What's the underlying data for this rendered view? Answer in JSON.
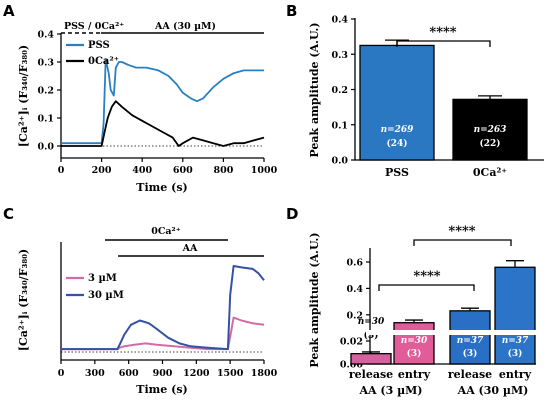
{
  "colors": {
    "pss": "#2a7fc0",
    "ca0": "#000000",
    "low": "#d36ba6",
    "high": "#3551a6",
    "barA": "#2b78c2",
    "barB": "#000000",
    "relLow": "#d5619f",
    "entLow": "#e25c99",
    "relHigh": "#2a6fc6",
    "entHigh": "#2b74c8"
  },
  "panels": {
    "A": {
      "letter": "A",
      "stim_left": "PSS / 0Ca²⁺",
      "stim_right": "AA (30 µM)",
      "legend": [
        "PSS",
        "0Ca²⁺"
      ]
    },
    "B": {
      "letter": "B",
      "significance": "****"
    },
    "C": {
      "letter": "C",
      "stim_top": "0Ca²⁺",
      "stim_bottom": "AA",
      "legend": [
        "3 µM",
        "30 µM"
      ]
    },
    "D": {
      "letter": "D",
      "sig_low": "****",
      "sig_high": "****"
    }
  },
  "chart_data": [
    {
      "panel": "A",
      "type": "line",
      "xlabel": "Time (s)",
      "ylabel": "[Ca²⁺]ᵢ (F₃₄₀/F₃₈₀)",
      "xlim": [
        0,
        1000
      ],
      "ylim": [
        -0.05,
        0.45
      ],
      "xticks": [
        0,
        200,
        400,
        600,
        800,
        1000
      ],
      "yticks": [
        0.0,
        0.1,
        0.2,
        0.3,
        0.4
      ],
      "ytick_labels": [
        "0.0",
        "0.1",
        "0.2",
        "0.3",
        "0.4"
      ],
      "series": [
        {
          "name": "PSS",
          "x": [
            0,
            100,
            200,
            210,
            220,
            235,
            245,
            260,
            270,
            285,
            300,
            330,
            370,
            420,
            480,
            530,
            570,
            600,
            640,
            670,
            700,
            750,
            800,
            850,
            900,
            950,
            1000
          ],
          "y": [
            0.01,
            0.01,
            0.01,
            0.08,
            0.31,
            0.26,
            0.2,
            0.18,
            0.28,
            0.3,
            0.3,
            0.29,
            0.28,
            0.28,
            0.27,
            0.25,
            0.22,
            0.19,
            0.17,
            0.16,
            0.17,
            0.21,
            0.24,
            0.26,
            0.27,
            0.27,
            0.27
          ]
        },
        {
          "name": "0Ca²⁺",
          "x": [
            0,
            100,
            200,
            215,
            230,
            250,
            270,
            300,
            350,
            400,
            450,
            500,
            550,
            580,
            600,
            650,
            700,
            750,
            800,
            850,
            900,
            950,
            1000
          ],
          "y": [
            0.0,
            0.0,
            0.0,
            0.05,
            0.1,
            0.14,
            0.16,
            0.14,
            0.11,
            0.09,
            0.07,
            0.05,
            0.03,
            0.0,
            0.01,
            0.03,
            0.02,
            0.01,
            0.0,
            0.01,
            0.01,
            0.02,
            0.03
          ]
        }
      ]
    },
    {
      "panel": "B",
      "type": "bar",
      "ylabel": "Peak amplitude (A.U.)",
      "ylim": [
        0,
        0.4
      ],
      "yticks": [
        0.0,
        0.1,
        0.2,
        0.3,
        0.4
      ],
      "ytick_labels": [
        "0.0",
        "0.1",
        "0.2",
        "0.3",
        "0.4"
      ],
      "categories": [
        "PSS",
        "0Ca²⁺"
      ],
      "values": [
        0.325,
        0.172
      ],
      "errors": [
        0.015,
        0.01
      ],
      "n_labels": [
        "n=269",
        "n=263"
      ],
      "sub_labels": [
        "(24)",
        "(22)"
      ]
    },
    {
      "panel": "C",
      "type": "line",
      "xlabel": "Time (s)",
      "ylabel": "[Ca²⁺]ᵢ (F₃₄₀/F₃₈₀)",
      "xlim": [
        0,
        1800
      ],
      "ylim": [
        -0.05,
        0.7
      ],
      "xticks": [
        0,
        300,
        600,
        900,
        1200,
        1500,
        1800
      ],
      "series": [
        {
          "name": "3 µM",
          "x": [
            0,
            300,
            500,
            520,
            560,
            650,
            750,
            850,
            1000,
            1150,
            1300,
            1480,
            1510,
            1530,
            1600,
            1700,
            1800
          ],
          "y": [
            0.02,
            0.02,
            0.02,
            0.03,
            0.04,
            0.05,
            0.06,
            0.05,
            0.04,
            0.03,
            0.02,
            0.02,
            0.15,
            0.24,
            0.22,
            0.2,
            0.19
          ]
        },
        {
          "name": "30 µM",
          "x": [
            0,
            300,
            500,
            520,
            560,
            620,
            700,
            780,
            850,
            950,
            1050,
            1150,
            1300,
            1480,
            1500,
            1530,
            1600,
            1700,
            1750,
            1800
          ],
          "y": [
            0.02,
            0.02,
            0.02,
            0.05,
            0.12,
            0.19,
            0.22,
            0.2,
            0.16,
            0.1,
            0.06,
            0.04,
            0.03,
            0.02,
            0.4,
            0.6,
            0.59,
            0.58,
            0.55,
            0.5
          ]
        }
      ]
    },
    {
      "panel": "D",
      "type": "bar",
      "ylabel": "Peak amplitude (A.U.)",
      "broken_axis": true,
      "yticks_top": [
        0.2,
        0.4,
        0.6
      ],
      "ytick_labels_top": [
        "0.2",
        "0.4",
        "0.6"
      ],
      "yticks_bottom": [
        0.0,
        0.02
      ],
      "ytick_labels_bottom": [
        "0.00",
        "0.02"
      ],
      "categories": [
        "release",
        "entry",
        "release",
        "entry"
      ],
      "groups": [
        "AA (3 µM)",
        "AA (30 µM)"
      ],
      "values": [
        0.009,
        0.14,
        0.23,
        0.56
      ],
      "errors": [
        0.0015,
        0.02,
        0.02,
        0.05
      ],
      "n_labels": [
        "n=30",
        "n=30",
        "n=37",
        "n=37"
      ],
      "sub_labels": [
        "(3)",
        "(3)",
        "(3)",
        "(3)"
      ]
    }
  ]
}
